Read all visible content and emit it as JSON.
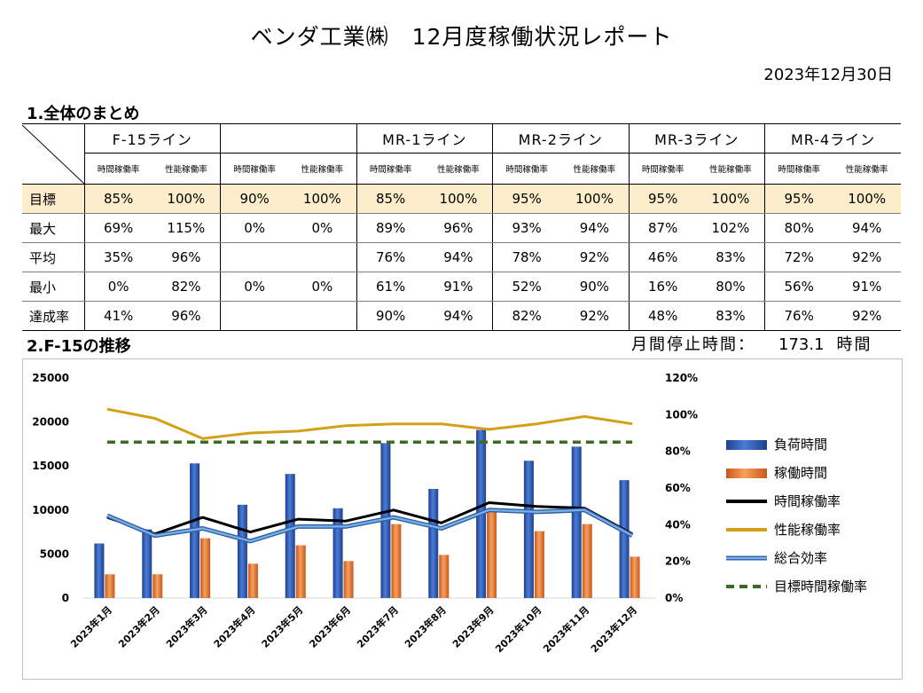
{
  "header": {
    "title": "ベンダ工業㈱　12月度稼働状況レポート",
    "date": "2023年12月30日"
  },
  "section1": {
    "title": "1.全体のまとめ"
  },
  "section2": {
    "title": "2.F-15の推移",
    "downtime_label": "月間停止時間：",
    "downtime_value": "173.1",
    "downtime_unit": "時間"
  },
  "summary_table": {
    "lines": [
      "F-15ライン",
      "",
      "MR-1ライン",
      "MR-2ライン",
      "MR-3ライン",
      "MR-4ライン"
    ],
    "sub_headers": [
      "時間稼働率",
      "性能稼働率"
    ],
    "rows": [
      {
        "label": "目標",
        "values": [
          "85%",
          "100%",
          "90%",
          "100%",
          "85%",
          "100%",
          "95%",
          "100%",
          "95%",
          "100%",
          "95%",
          "100%"
        ]
      },
      {
        "label": "最大",
        "values": [
          "69%",
          "115%",
          "0%",
          "0%",
          "89%",
          "96%",
          "93%",
          "94%",
          "87%",
          "102%",
          "80%",
          "94%"
        ]
      },
      {
        "label": "平均",
        "values": [
          "35%",
          "96%",
          "",
          "",
          "76%",
          "94%",
          "78%",
          "92%",
          "46%",
          "83%",
          "72%",
          "92%"
        ]
      },
      {
        "label": "最小",
        "values": [
          "0%",
          "82%",
          "0%",
          "0%",
          "61%",
          "91%",
          "52%",
          "90%",
          "16%",
          "80%",
          "56%",
          "91%"
        ]
      },
      {
        "label": "達成率",
        "values": [
          "41%",
          "96%",
          "",
          "",
          "90%",
          "94%",
          "82%",
          "92%",
          "48%",
          "83%",
          "76%",
          "92%"
        ]
      }
    ]
  },
  "chart_data": {
    "type": "bar",
    "categories": [
      "2023年1月",
      "2023年2月",
      "2023年3月",
      "2023年4月",
      "2023年5月",
      "2023年6月",
      "2023年7月",
      "2023年8月",
      "2023年9月",
      "2023年10月",
      "2023年11月",
      "2023年12月"
    ],
    "left_axis": {
      "ylim": [
        0,
        25000
      ],
      "ticks": [
        "0",
        "5000",
        "10000",
        "15000",
        "20000",
        "25000"
      ]
    },
    "right_axis": {
      "ylim": [
        0,
        120
      ],
      "ticks": [
        "0%",
        "20%",
        "40%",
        "60%",
        "80%",
        "100%",
        "120%"
      ]
    },
    "bar_series": [
      {
        "name": "負荷時間",
        "color": "#2e5bb8",
        "values": [
          6200,
          7800,
          15300,
          10600,
          14100,
          10200,
          17600,
          12400,
          19100,
          15600,
          17200,
          13400
        ]
      },
      {
        "name": "稼働時間",
        "color": "#ed7d31",
        "values": [
          2700,
          2700,
          6800,
          3900,
          6000,
          4200,
          8400,
          4900,
          9800,
          7600,
          8400,
          4700
        ]
      }
    ],
    "line_series": [
      {
        "name": "時間稼働率",
        "color": "#000000",
        "dashed": false,
        "values": [
          44,
          35,
          44,
          36,
          43,
          42,
          48,
          41,
          52,
          50,
          49,
          35
        ]
      },
      {
        "name": "性能稼働率",
        "color": "#d4a017",
        "dashed": false,
        "values": [
          103,
          98,
          87,
          90,
          91,
          94,
          95,
          95,
          92,
          95,
          99,
          95
        ]
      },
      {
        "name": "総合効率",
        "color": "#4a7fc1",
        "dashed": false,
        "values": [
          45,
          34,
          38,
          31,
          39,
          39,
          44,
          38,
          48,
          47,
          48,
          34
        ]
      },
      {
        "name": "目標時間稼働率",
        "color": "#3a6b1e",
        "dashed": true,
        "values": [
          85,
          85,
          85,
          85,
          85,
          85,
          85,
          85,
          85,
          85,
          85,
          85
        ]
      }
    ],
    "legend_position": "right",
    "grid": false
  }
}
